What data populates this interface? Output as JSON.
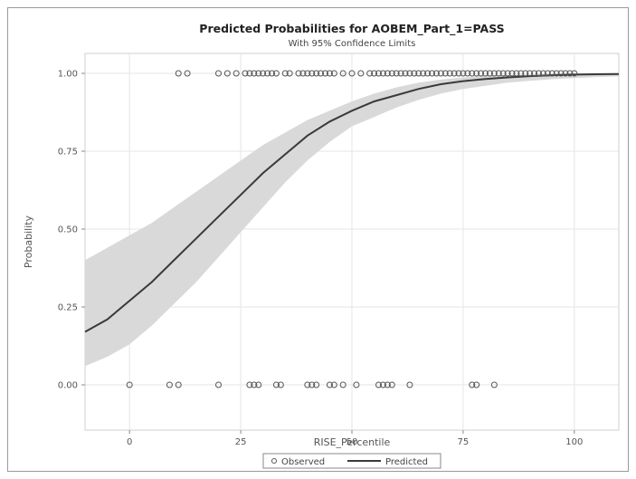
{
  "chart_data": {
    "type": "line",
    "title": "Predicted Probabilities for AOBEM_Part_1=PASS",
    "subtitle": "With 95% Confidence Limits",
    "xlabel": "RISE_Percentile",
    "ylabel": "Probability",
    "xlim": [
      -10,
      110
    ],
    "ylim": [
      0,
      1
    ],
    "x_ticks": [
      0,
      25,
      50,
      75,
      100
    ],
    "x_tick_labels": [
      "0",
      "25",
      "50",
      "75",
      "100"
    ],
    "y_ticks": [
      0,
      0.25,
      0.5,
      0.75,
      1.0
    ],
    "y_tick_labels": [
      "0.00",
      "0.25",
      "0.50",
      "0.75",
      "1.00"
    ],
    "grid": true,
    "legend_position": "bottom-center",
    "colors": {
      "predicted": "#3a3a3a",
      "band": "#d9d9d9",
      "observed": "#555555",
      "grid": "#e6e6e6"
    },
    "series": [
      {
        "name": "Predicted",
        "kind": "line",
        "x": [
          -10,
          -5,
          0,
          5,
          10,
          15,
          20,
          25,
          30,
          35,
          40,
          45,
          50,
          55,
          60,
          65,
          70,
          75,
          80,
          85,
          90,
          95,
          100,
          105,
          110
        ],
        "y": [
          0.17,
          0.21,
          0.27,
          0.33,
          0.4,
          0.47,
          0.54,
          0.61,
          0.68,
          0.74,
          0.8,
          0.845,
          0.88,
          0.91,
          0.93,
          0.95,
          0.965,
          0.975,
          0.982,
          0.987,
          0.991,
          0.994,
          0.996,
          0.997,
          0.998
        ]
      },
      {
        "kind": "band",
        "x": [
          -10,
          -5,
          0,
          5,
          10,
          15,
          20,
          25,
          30,
          35,
          40,
          45,
          50,
          55,
          60,
          65,
          70,
          75,
          80,
          85,
          90,
          95,
          100,
          105,
          110
        ],
        "lower": [
          0.06,
          0.09,
          0.13,
          0.19,
          0.26,
          0.33,
          0.41,
          0.49,
          0.57,
          0.65,
          0.72,
          0.78,
          0.83,
          0.86,
          0.89,
          0.915,
          0.935,
          0.95,
          0.96,
          0.97,
          0.976,
          0.981,
          0.985,
          0.988,
          0.99
        ],
        "upper": [
          0.4,
          0.44,
          0.48,
          0.52,
          0.57,
          0.62,
          0.67,
          0.72,
          0.77,
          0.81,
          0.85,
          0.88,
          0.91,
          0.935,
          0.955,
          0.97,
          0.98,
          0.987,
          0.992,
          0.995,
          0.997,
          0.998,
          0.999,
          0.999,
          1.0
        ]
      },
      {
        "name": "Observed",
        "kind": "scatter",
        "points_y1": [
          11,
          13,
          20,
          22,
          24,
          26,
          27,
          28,
          29,
          30,
          31,
          32,
          33,
          35,
          36,
          38,
          39,
          40,
          41,
          42,
          43,
          44,
          45,
          46,
          48,
          50,
          52,
          54,
          55,
          56,
          57,
          58,
          59,
          60,
          61,
          62,
          63,
          64,
          65,
          66,
          67,
          68,
          69,
          70,
          71,
          72,
          73,
          74,
          75,
          76,
          77,
          78,
          79,
          80,
          81,
          82,
          83,
          84,
          85,
          86,
          87,
          88,
          89,
          90,
          91,
          92,
          93,
          94,
          95,
          96,
          97,
          98,
          99,
          100
        ],
        "points_y0": [
          0,
          9,
          11,
          20,
          27,
          28,
          29,
          33,
          34,
          40,
          41,
          42,
          45,
          46,
          48,
          51,
          56,
          57,
          58,
          59,
          63,
          77,
          78,
          82
        ]
      }
    ]
  }
}
